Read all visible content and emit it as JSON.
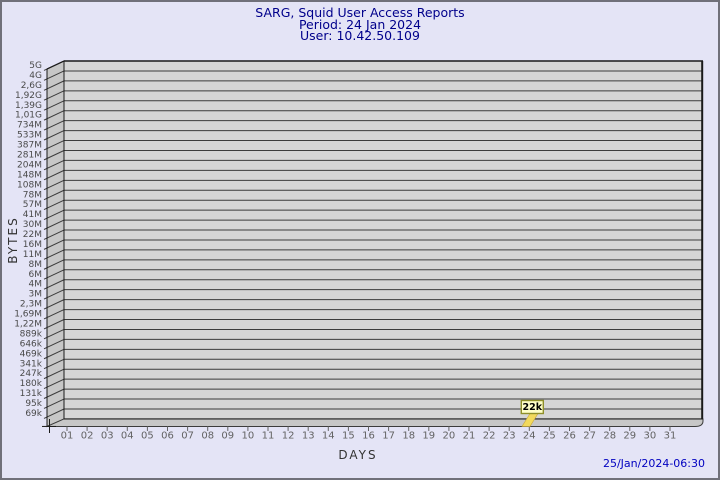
{
  "window": {
    "bg_color": "#e4e4f6",
    "border_color": "#70707a"
  },
  "title": {
    "line1": "SARG, Squid User Access Reports",
    "line2": "Period: 24 Jan 2024",
    "line3": "User: 10.42.50.109",
    "color": "#00008b"
  },
  "footer": {
    "timestamp": "25/Jan/2024-06:30",
    "color": "#0000c0"
  },
  "chart_data": {
    "type": "bar",
    "title": "SARG, Squid User Access Reports",
    "subtitle": "Period: 24 Jan 2024",
    "user": "User: 10.42.50.109",
    "xlabel": "DAYS",
    "ylabel": "BYTES",
    "scale": "log",
    "ylim": [
      "69k",
      "5G"
    ],
    "grid": true,
    "x_ticks": [
      "01",
      "02",
      "03",
      "04",
      "05",
      "06",
      "07",
      "08",
      "09",
      "10",
      "11",
      "12",
      "13",
      "14",
      "15",
      "16",
      "17",
      "18",
      "19",
      "20",
      "21",
      "22",
      "23",
      "24",
      "25",
      "26",
      "27",
      "28",
      "29",
      "30",
      "31"
    ],
    "y_ticks": [
      "5G",
      "4G",
      "2,6G",
      "1,92G",
      "1,39G",
      "1,01G",
      "734M",
      "533M",
      "387M",
      "281M",
      "204M",
      "148M",
      "108M",
      "78M",
      "57M",
      "41M",
      "30M",
      "22M",
      "16M",
      "11M",
      "8M",
      "6M",
      "4M",
      "3M",
      "2,3M",
      "1,69M",
      "1,22M",
      "889k",
      "646k",
      "469k",
      "341k",
      "247k",
      "180k",
      "131k",
      "95k",
      "69k"
    ],
    "points": [
      {
        "day": "24",
        "label": "22k"
      }
    ],
    "colors": {
      "plot_bg": "#d6d6d6",
      "wall": "#c7c7c7",
      "grid": "#3c3c3c",
      "edge": "#1a1a1a",
      "y_tick_text": "#4a4a4a",
      "x_tick_text": "#636363",
      "bar": "#f2d95c",
      "bar_edge": "#c9a93e",
      "marker_bg": "#ffffc8",
      "marker_border": "#8f8f2a",
      "marker_text": "#000000"
    }
  }
}
